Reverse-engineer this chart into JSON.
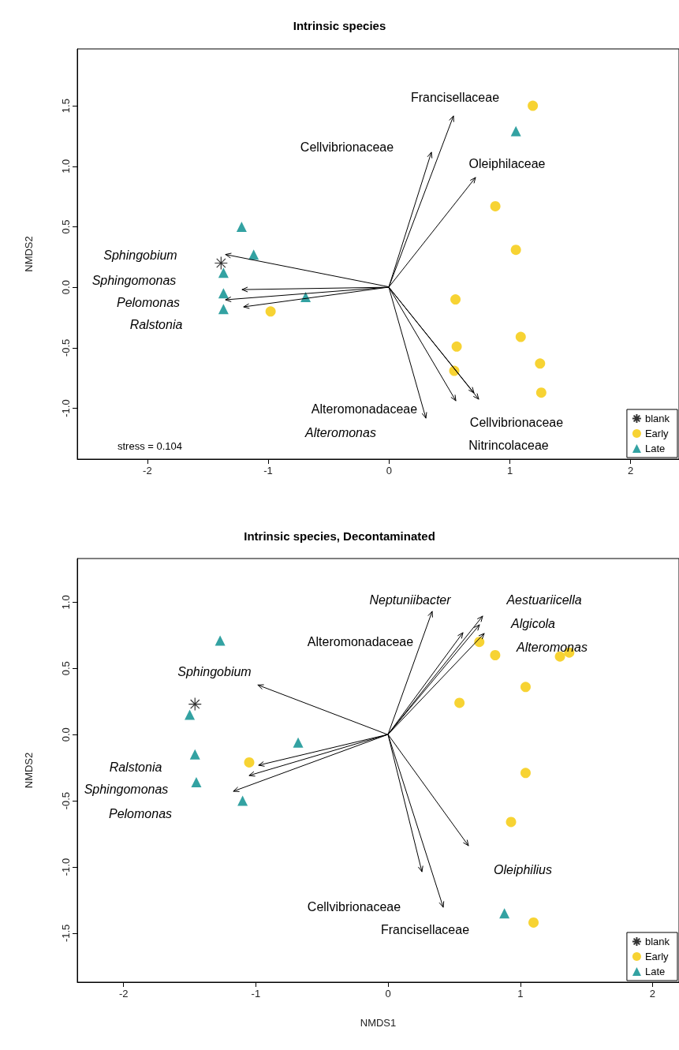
{
  "chart_data": [
    {
      "type": "scatter",
      "title": "Intrinsic species",
      "ylabel": "NMDS2",
      "xlim": [
        -2.58,
        2.4
      ],
      "ylim": [
        -1.42,
        1.97
      ],
      "xticks": [
        -2,
        -1,
        0,
        1,
        2
      ],
      "yticks": [
        {
          "value": -1,
          "label": "-1.0"
        },
        -0.5,
        {
          "value": 0,
          "label": "0.0"
        },
        0.5,
        {
          "value": 1,
          "label": "1.0"
        },
        1.5
      ],
      "grid": false,
      "legend": "bottom right",
      "series": [
        {
          "name": "blank",
          "color": "#000000",
          "marker": "cross",
          "x": [
            -1.39
          ],
          "values": [
            0.2
          ]
        },
        {
          "name": "Early",
          "color": "#f5c800",
          "marker": "circle",
          "x": [
            1.19,
            0.88,
            1.05,
            0.55,
            0.56,
            0.54,
            1.09,
            1.25,
            1.26,
            -0.98
          ],
          "values": [
            1.5,
            0.67,
            0.31,
            -0.1,
            -0.49,
            -0.69,
            -0.41,
            -0.63,
            -0.87,
            -0.2
          ]
        },
        {
          "name": "Late",
          "color": "#008b8b",
          "marker": "triangle",
          "x": [
            1.05,
            -1.22,
            -1.12,
            -1.37,
            -1.37,
            -1.37,
            -0.69
          ],
          "values": [
            1.29,
            0.5,
            0.27,
            0.12,
            -0.05,
            -0.18,
            -0.08
          ]
        }
      ],
      "annotations": [
        "Francisellaceae",
        "Cellvibrionaceae",
        "Oleiphilaceae",
        "Sphingobium",
        "Sphingomonas",
        "Pelomonas",
        "Ralstonia",
        "Alteromonadaceae",
        "Alteromonas",
        "Cellvibrionaceae",
        "Nitrincolaceae",
        "stress = 0.104"
      ]
    },
    {
      "type": "scatter",
      "title": "Intrinsic species, Decontaminated",
      "xlabel": "NMDS1",
      "ylabel": "NMDS2",
      "xlim": [
        -2.35,
        2.2
      ],
      "ylim": [
        -1.87,
        1.33
      ],
      "xticks": [
        -2,
        -1,
        0,
        1,
        2
      ],
      "yticks": [
        -1.5,
        {
          "value": -1,
          "label": "-1.0"
        },
        -0.5,
        {
          "value": 0,
          "label": "0.0"
        },
        0.5,
        {
          "value": 1,
          "label": "1.0"
        }
      ],
      "grid": false,
      "legend": "bottom right",
      "series": [
        {
          "name": "blank",
          "color": "#000000",
          "marker": "cross",
          "x": [
            -1.46
          ],
          "values": [
            0.23
          ]
        },
        {
          "name": "Early",
          "color": "#f5c800",
          "marker": "circle",
          "x": [
            0.69,
            0.81,
            1.3,
            1.37,
            1.04,
            0.54,
            1.04,
            0.93,
            1.1,
            -1.05
          ],
          "values": [
            0.7,
            0.6,
            0.59,
            0.62,
            0.36,
            0.24,
            -0.29,
            -0.66,
            -1.42,
            -0.21
          ]
        },
        {
          "name": "Late",
          "color": "#008b8b",
          "marker": "triangle",
          "x": [
            -1.27,
            -1.5,
            -1.46,
            -1.45,
            -1.1,
            -0.68,
            0.88
          ],
          "values": [
            0.71,
            0.15,
            -0.15,
            -0.36,
            -0.5,
            -0.06,
            -1.35
          ]
        }
      ],
      "annotations": [
        "Neptuniibacter",
        "Aestuariicella",
        "Algicola",
        "Alteromonas",
        "Alteromonadaceae",
        "Sphingobium",
        "Ralstonia",
        "Sphingomonas",
        "Pelomonas",
        "Oleiphilius",
        "Cellvibrionaceae",
        "Francisellaceae"
      ]
    }
  ]
}
